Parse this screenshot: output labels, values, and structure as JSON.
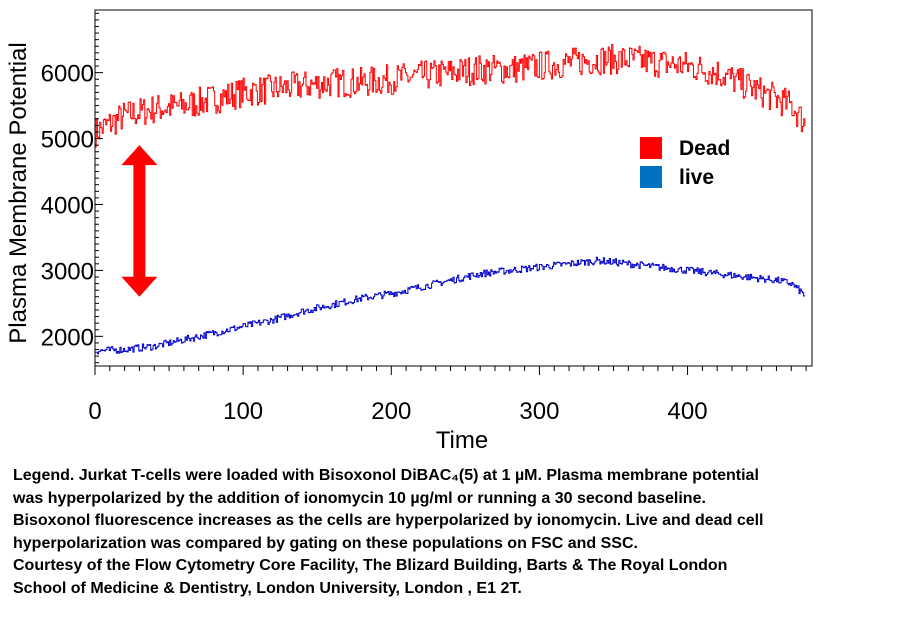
{
  "chart_data": {
    "type": "line",
    "title": "",
    "xlabel": "Time",
    "ylabel": "Plasma Membrane Potential",
    "xlim": [
      0,
      484
    ],
    "ylim": [
      1550,
      6950
    ],
    "x_ticks": [
      0,
      100,
      200,
      300,
      400
    ],
    "y_ticks": [
      2000,
      3000,
      4000,
      5000,
      6000
    ],
    "grid": false,
    "legend": {
      "position": "right",
      "entries": [
        {
          "label": "Dead",
          "color": "#ff0000"
        },
        {
          "label": "live",
          "color": "#0070c0"
        }
      ]
    },
    "series": [
      {
        "name": "Dead",
        "color": "#ff0000",
        "x": [
          0,
          20,
          40,
          60,
          80,
          100,
          120,
          140,
          160,
          180,
          200,
          220,
          240,
          260,
          280,
          300,
          320,
          340,
          360,
          380,
          400,
          420,
          440,
          460,
          470,
          480
        ],
        "y": [
          5100,
          5350,
          5450,
          5500,
          5600,
          5700,
          5750,
          5800,
          5850,
          5850,
          5900,
          5950,
          6000,
          6050,
          6050,
          6100,
          6150,
          6200,
          6200,
          6150,
          6100,
          6000,
          5800,
          5600,
          5500,
          5200
        ]
      },
      {
        "name": "live",
        "color": "#0000cc",
        "x": [
          0,
          20,
          40,
          60,
          80,
          100,
          120,
          140,
          160,
          180,
          200,
          220,
          240,
          260,
          280,
          300,
          320,
          340,
          360,
          380,
          400,
          420,
          440,
          460,
          470,
          480
        ],
        "y": [
          1780,
          1800,
          1850,
          1950,
          2050,
          2150,
          2250,
          2380,
          2480,
          2580,
          2650,
          2750,
          2850,
          2950,
          3000,
          3050,
          3100,
          3150,
          3100,
          3050,
          3000,
          2950,
          2900,
          2850,
          2800,
          2600
        ]
      }
    ],
    "annotation": {
      "type": "double-arrow",
      "color": "#ff0000",
      "x": 30,
      "y_from": 2600,
      "y_to": 4900
    }
  },
  "caption": {
    "lines": [
      "Legend. Jurkat T-cells were loaded with Bisoxonol DiBAC₄(5) at 1 µM. Plasma membrane potential",
      "was hyperpolarized by the addition of ionomycin 10 µg/ml  or  running a 30 second baseline.",
      "Bisoxonol fluorescence increases as the cells are hyperpolarized by ionomycin. Live and dead cell",
      "hyperpolarization  was compared by gating on these populations on FSC and SSC.",
      "Courtesy of the Flow Cytometry Core Facility, The Blizard Building, Barts &  The Royal London",
      "School of Medicine & Dentistry, London University, London , E1 2T."
    ]
  }
}
